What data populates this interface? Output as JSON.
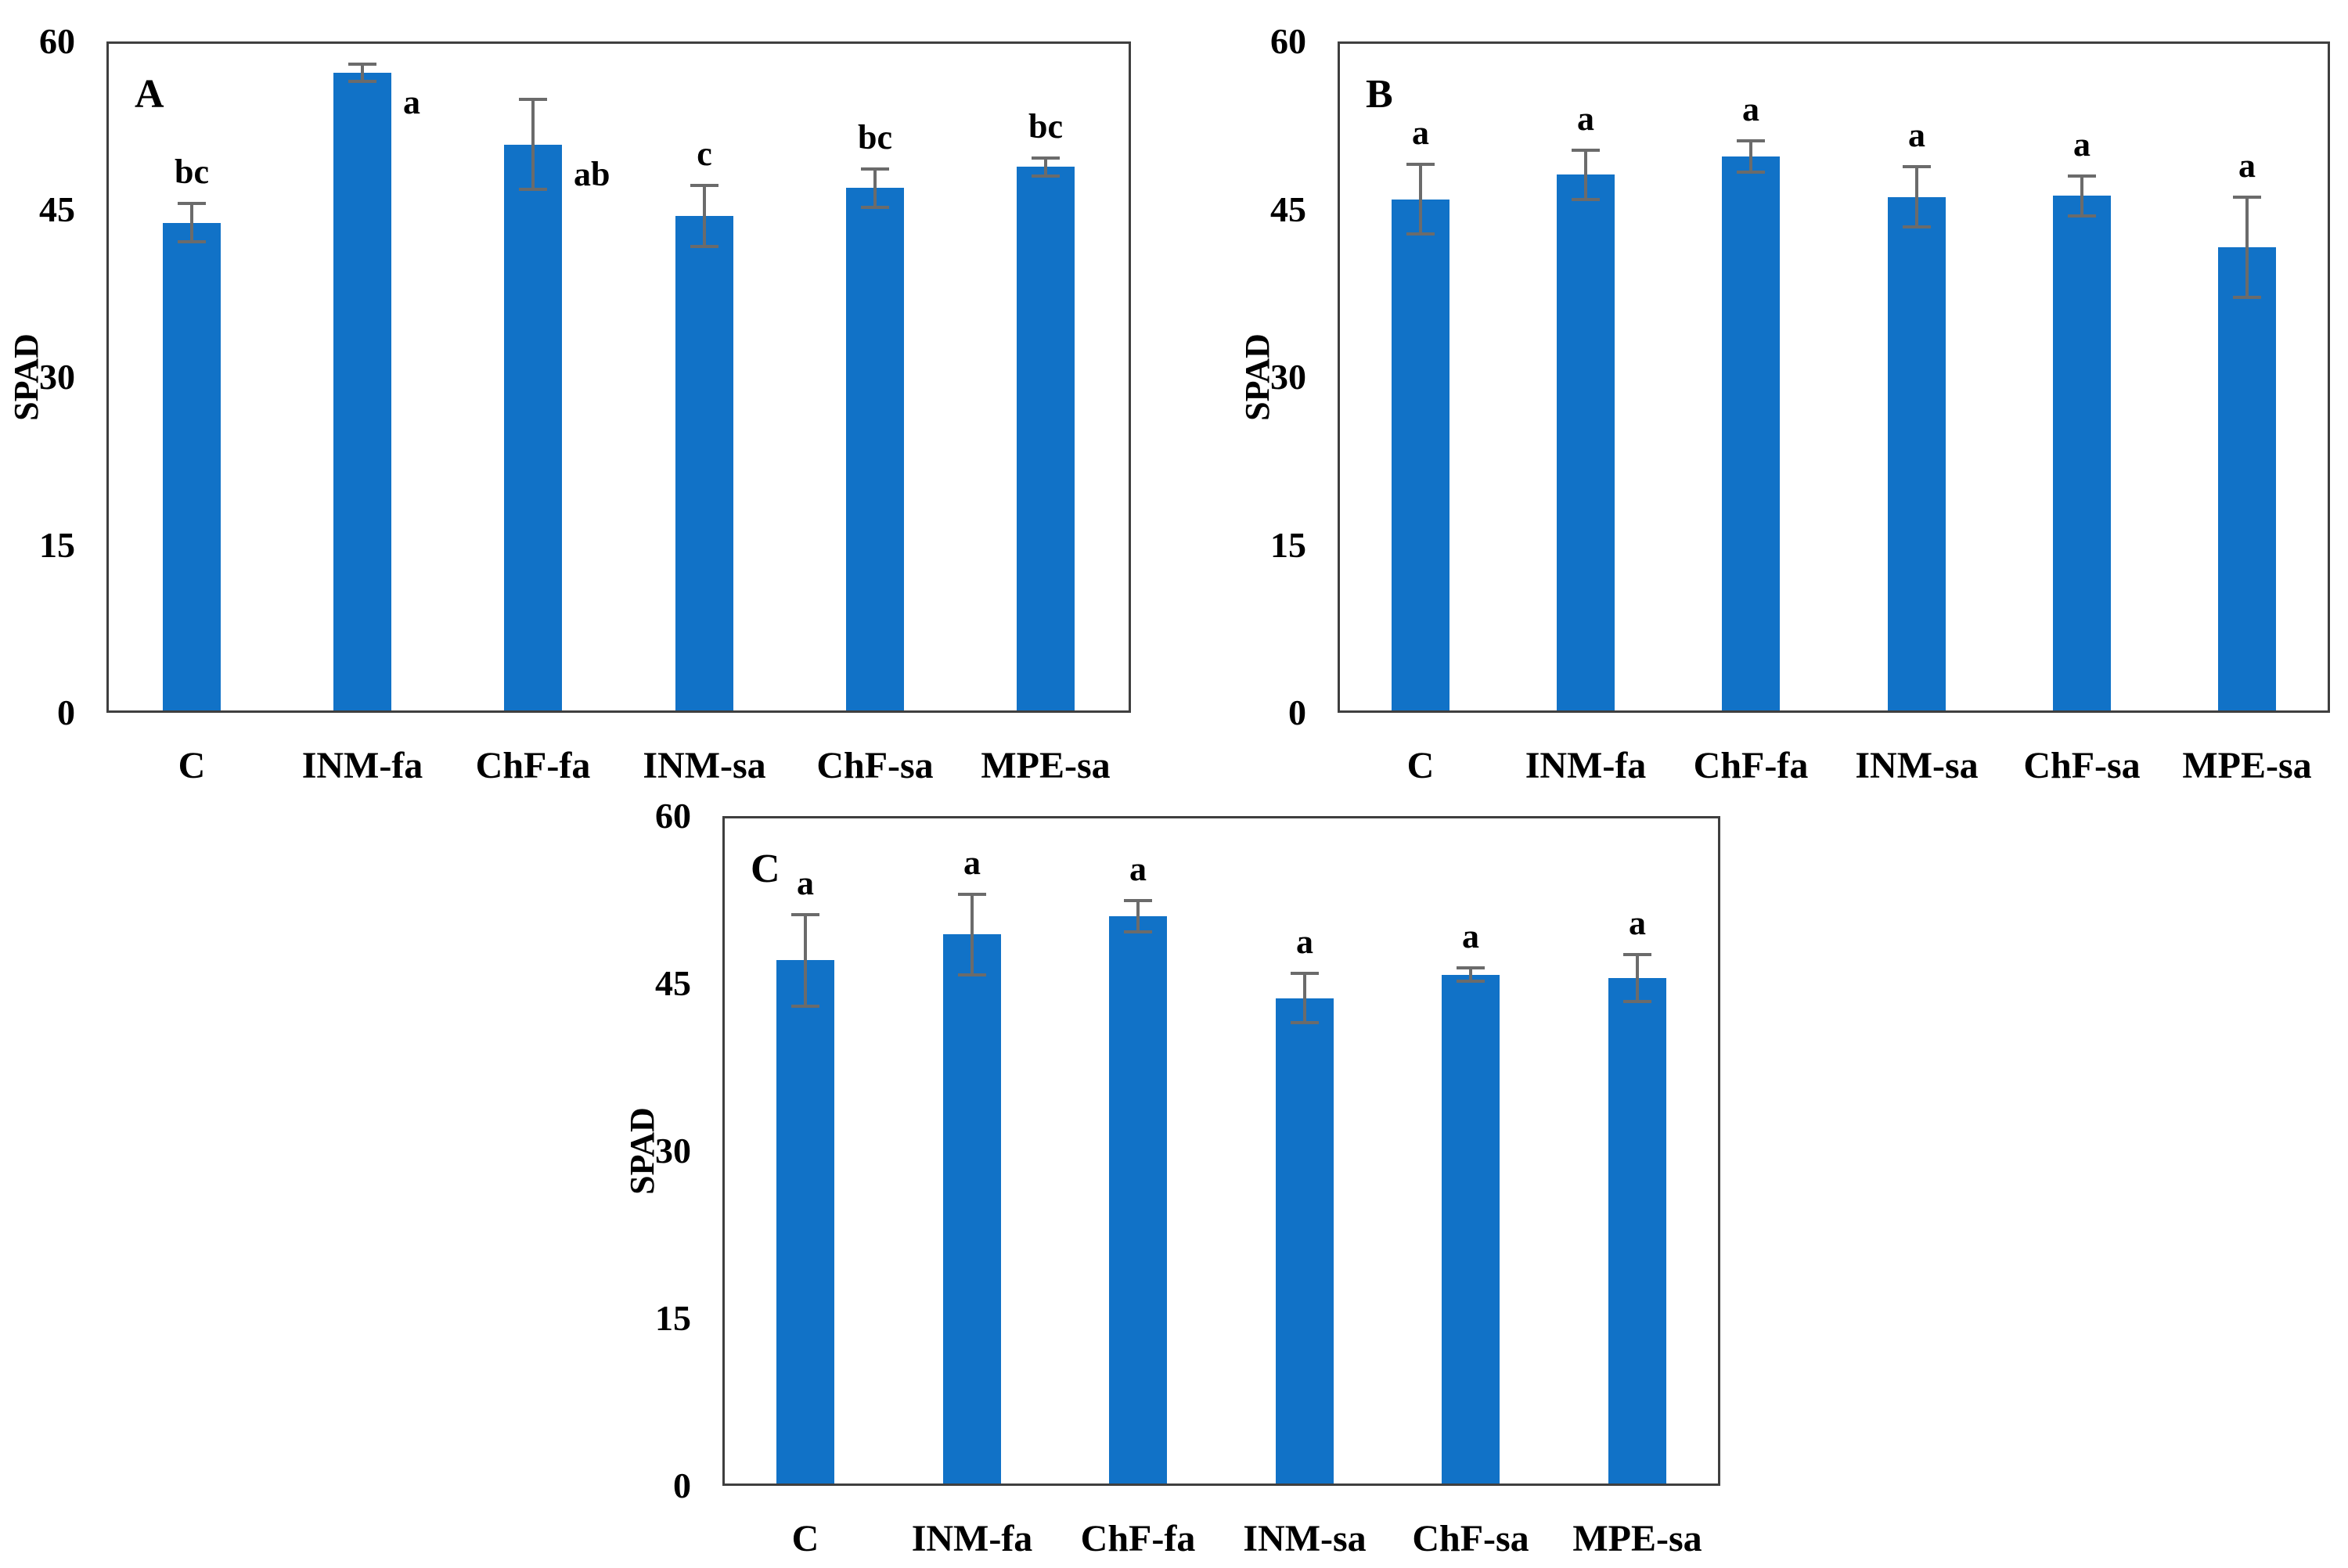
{
  "figure": {
    "kind": "three-panel bar figure",
    "ylabel": "SPAD",
    "bar_color": "#1172C7",
    "error_bar_color": "#6B6B6B",
    "axis_color": "#3F3F3F",
    "text_color": "#000000",
    "background_color": "#FFFFFF"
  },
  "chart_data": [
    {
      "type": "bar",
      "panel_label": "A",
      "title": "",
      "xlabel": "",
      "ylabel": "SPAD",
      "ylim": [
        0,
        60
      ],
      "yticks": [
        0,
        15,
        30,
        45,
        60
      ],
      "grid": false,
      "legend": false,
      "categories": [
        "C",
        "INM-fa",
        "ChF-fa",
        "INM-sa",
        "ChF-sa",
        "MPE-sa"
      ],
      "values": [
        43.8,
        57.2,
        50.8,
        44.4,
        46.9,
        48.8
      ],
      "errors": [
        1.7,
        0.8,
        4.0,
        2.7,
        1.7,
        0.8
      ],
      "sig_letters": [
        "bc",
        "a",
        "ab",
        "c",
        "bc",
        "bc"
      ]
    },
    {
      "type": "bar",
      "panel_label": "B",
      "title": "",
      "xlabel": "",
      "ylabel": "SPAD",
      "ylim": [
        0,
        60
      ],
      "yticks": [
        0,
        15,
        30,
        45,
        60
      ],
      "grid": false,
      "legend": false,
      "categories": [
        "C",
        "INM-fa",
        "ChF-fa",
        "INM-sa",
        "ChF-sa",
        "MPE-sa"
      ],
      "values": [
        45.9,
        48.1,
        49.7,
        46.1,
        46.2,
        41.6
      ],
      "errors": [
        3.1,
        2.2,
        1.4,
        2.7,
        1.8,
        4.5
      ],
      "sig_letters": [
        "a",
        "a",
        "a",
        "a",
        "a",
        "a"
      ]
    },
    {
      "type": "bar",
      "panel_label": "C",
      "title": "",
      "xlabel": "",
      "ylabel": "SPAD",
      "ylim": [
        0,
        60
      ],
      "yticks": [
        0,
        15,
        30,
        45,
        60
      ],
      "grid": false,
      "legend": false,
      "categories": [
        "C",
        "INM-fa",
        "ChF-fa",
        "INM-sa",
        "ChF-sa",
        "MPE-sa"
      ],
      "values": [
        47.1,
        49.4,
        51.0,
        43.7,
        45.8,
        45.5
      ],
      "errors": [
        4.1,
        3.6,
        1.4,
        2.2,
        0.6,
        2.1
      ],
      "sig_letters": [
        "a",
        "a",
        "a",
        "a",
        "a",
        "a"
      ]
    }
  ]
}
